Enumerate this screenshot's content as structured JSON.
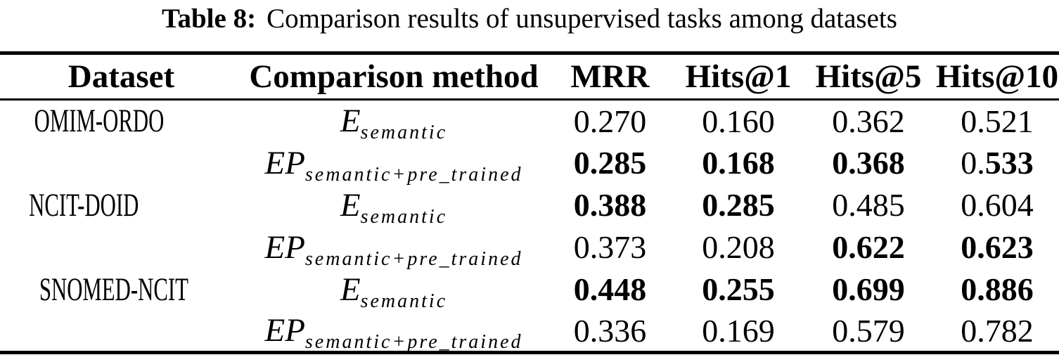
{
  "caption": {
    "label": "Table 8:",
    "text": "Comparison results of unsupervised tasks among datasets"
  },
  "colors": {
    "background": "#ffffff",
    "text": "#000000",
    "rule": "#000000"
  },
  "table": {
    "headers": [
      "Dataset",
      "Comparison method",
      "MRR",
      "Hits@1",
      "Hits@5",
      "Hits@10"
    ],
    "rows": [
      {
        "dataset": "OMIM-ORDO",
        "method_base": "E",
        "method_sub": "semantic",
        "cells": [
          [
            {
              "t": "0.270",
              "b": false
            }
          ],
          [
            {
              "t": "0.160",
              "b": false
            }
          ],
          [
            {
              "t": "0.362",
              "b": false
            }
          ],
          [
            {
              "t": "0.521",
              "b": false
            }
          ]
        ]
      },
      {
        "dataset": "",
        "method_base": "EP",
        "method_sub": "semantic+pre_trained",
        "cells": [
          [
            {
              "t": "0.285",
              "b": true
            }
          ],
          [
            {
              "t": "0.168",
              "b": true
            }
          ],
          [
            {
              "t": "0.368",
              "b": true
            }
          ],
          [
            {
              "t": "0.",
              "b": false
            },
            {
              "t": "533",
              "b": true
            }
          ]
        ]
      },
      {
        "dataset": "NCIT-DOID",
        "method_base": "E",
        "method_sub": "semantic",
        "cells": [
          [
            {
              "t": "0.388",
              "b": true
            }
          ],
          [
            {
              "t": "0.285",
              "b": true
            }
          ],
          [
            {
              "t": "0.485",
              "b": false
            }
          ],
          [
            {
              "t": "0.604",
              "b": false
            }
          ]
        ]
      },
      {
        "dataset": "",
        "method_base": "EP",
        "method_sub": "semantic+pre_trained",
        "cells": [
          [
            {
              "t": "0.373",
              "b": false
            }
          ],
          [
            {
              "t": "0.208",
              "b": false
            }
          ],
          [
            {
              "t": "0.622",
              "b": true
            }
          ],
          [
            {
              "t": "0.623",
              "b": true
            }
          ]
        ]
      },
      {
        "dataset": "SNOMED-NCIT",
        "method_base": "E",
        "method_sub": "semantic",
        "cells": [
          [
            {
              "t": "0.448",
              "b": true
            }
          ],
          [
            {
              "t": "0.255",
              "b": true
            }
          ],
          [
            {
              "t": "0.699",
              "b": true
            }
          ],
          [
            {
              "t": "0.886",
              "b": true
            }
          ]
        ]
      },
      {
        "dataset": "",
        "method_base": "EP",
        "method_sub": "semantic+pre_trained",
        "cells": [
          [
            {
              "t": "0.336",
              "b": false
            }
          ],
          [
            {
              "t": "0.169",
              "b": false
            }
          ],
          [
            {
              "t": "0.579",
              "b": false
            }
          ],
          [
            {
              "t": "0.782",
              "b": false
            }
          ]
        ]
      }
    ]
  }
}
